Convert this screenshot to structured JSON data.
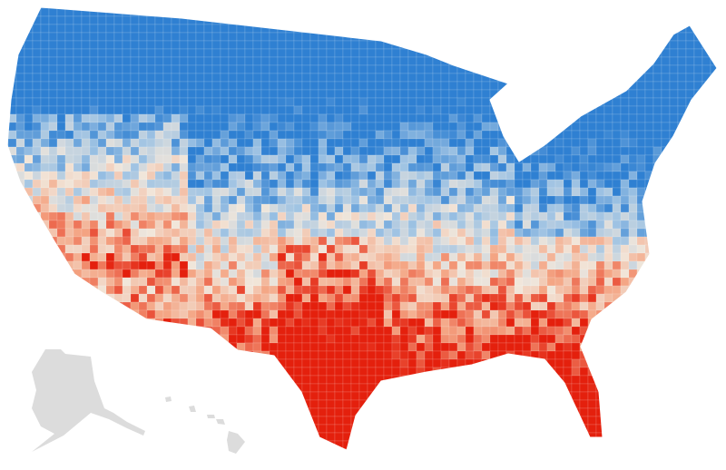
{
  "map": {
    "colors": {
      "north": "#2f80d2",
      "north_light": "#9fc3e3",
      "neutral": "#f1e6da",
      "south_light": "#f4a584",
      "south": "#e4200d",
      "territory": "#dcdcdc",
      "border": "#ffffff"
    }
  }
}
